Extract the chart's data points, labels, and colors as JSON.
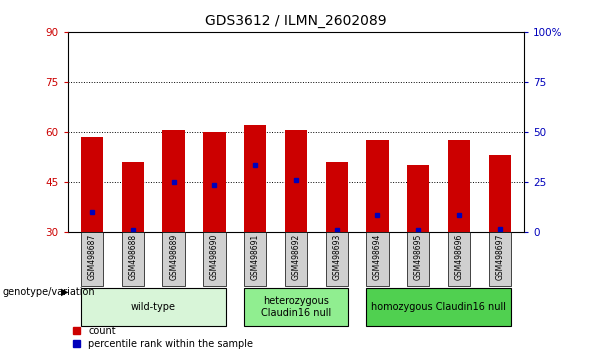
{
  "title": "GDS3612 / ILMN_2602089",
  "samples": [
    "GSM498687",
    "GSM498688",
    "GSM498689",
    "GSM498690",
    "GSM498691",
    "GSM498692",
    "GSM498693",
    "GSM498694",
    "GSM498695",
    "GSM498696",
    "GSM498697"
  ],
  "bar_tops": [
    58.5,
    51,
    60.5,
    60,
    62,
    60.5,
    51,
    57.5,
    50,
    57.5,
    53
  ],
  "bar_bottom": 30,
  "blue_positions": [
    36,
    30.5,
    45,
    44,
    50,
    45.5,
    30.5,
    35,
    30.5,
    35,
    31
  ],
  "ylim_left": [
    30,
    90
  ],
  "ylim_right": [
    0,
    100
  ],
  "yticks_left": [
    30,
    45,
    60,
    75,
    90
  ],
  "yticks_right": [
    0,
    25,
    50,
    75,
    100
  ],
  "groups": [
    {
      "label": "wild-type",
      "start": 0,
      "end": 4,
      "color": "#d8f5d8"
    },
    {
      "label": "heterozygous\nClaudin16 null",
      "start": 4,
      "end": 7,
      "color": "#90ee90"
    },
    {
      "label": "homozygous Claudin16 null",
      "start": 7,
      "end": 11,
      "color": "#50d050"
    }
  ],
  "bar_color": "#cc0000",
  "blue_color": "#0000bb",
  "tick_color_left": "#cc0000",
  "tick_color_right": "#0000bb",
  "bar_width": 0.55,
  "xlabel_genotype": "genotype/variation",
  "legend_count": "count",
  "legend_percentile": "percentile rank within the sample",
  "background_plot": "#ffffff",
  "background_label": "#d0d0d0",
  "title_fontsize": 10
}
